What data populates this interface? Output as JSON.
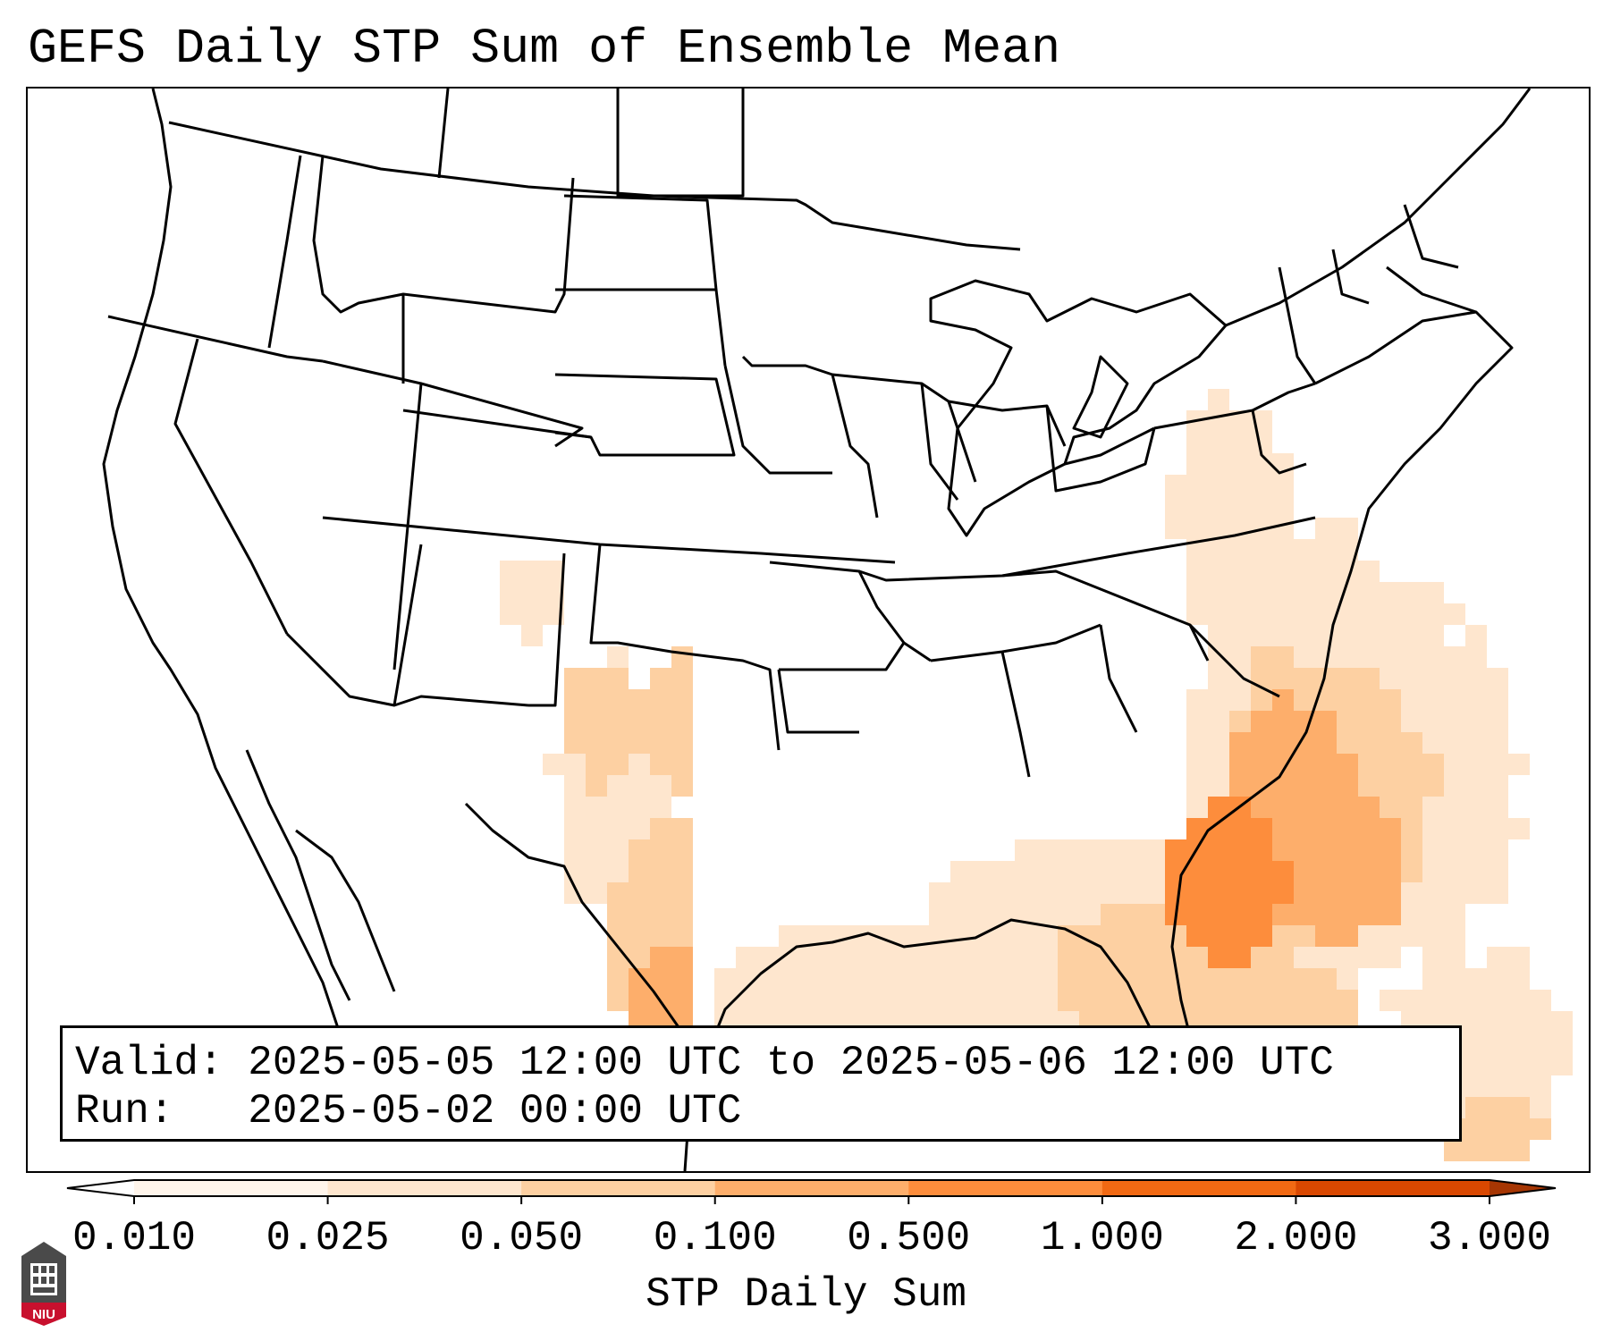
{
  "title": "GEFS Daily STP Sum of Ensemble Mean",
  "info": {
    "valid_label": "Valid:",
    "valid_text": "2025-05-05 12:00 UTC to 2025-05-06 12:00 UTC",
    "run_label": "Run:",
    "run_text": "2025-05-02 00:00 UTC"
  },
  "colorbar": {
    "label": "STP Daily Sum",
    "ticks": [
      "0.010",
      "0.025",
      "0.050",
      "0.100",
      "0.500",
      "1.000",
      "2.000",
      "3.000"
    ],
    "colors": [
      "#fff5eb",
      "#fee6ce",
      "#fdd0a2",
      "#fdae6b",
      "#fd8d3c",
      "#f16913",
      "#d94801",
      "#a63603"
    ],
    "extend": "both"
  },
  "logo": {
    "text": "NIU",
    "colors": {
      "tower": "#4a4a4a",
      "banner": "#c8102e"
    }
  },
  "map": {
    "region": "Continental United States",
    "field_colors": {
      "light": "#fee6ce",
      "medium": "#fdd0a2",
      "strong": "#fdae6b",
      "max": "#fd8d3c"
    }
  }
}
